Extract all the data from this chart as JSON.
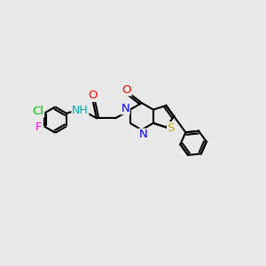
{
  "bg_color": "#e8e8e8",
  "bond_color": "#000000",
  "bond_width": 1.5,
  "atom_colors": {
    "N": "#0000ff",
    "O": "#ff0000",
    "S": "#ccaa00",
    "Cl": "#00bb00",
    "F": "#ff00ff",
    "NH": "#00aaaa",
    "C": "#000000"
  },
  "font_size": 9.5
}
